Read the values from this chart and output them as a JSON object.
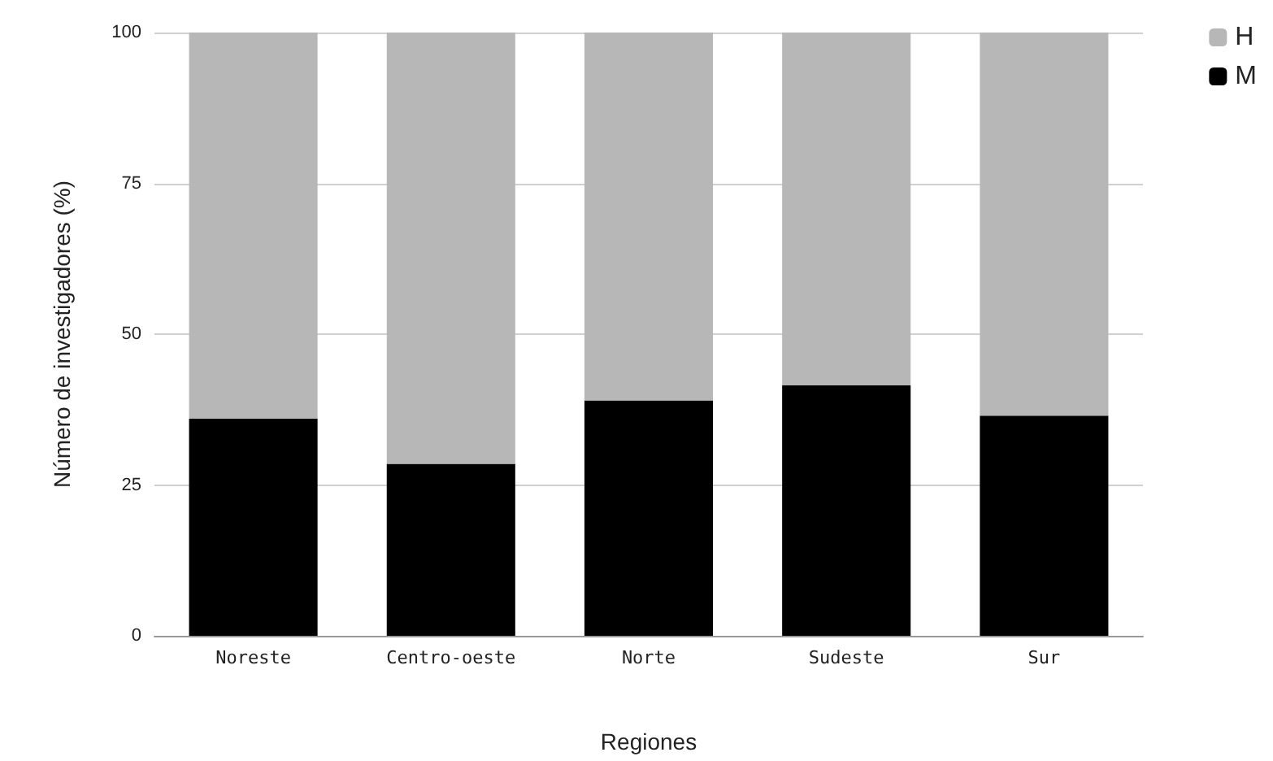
{
  "chart_data": {
    "type": "bar",
    "stacked": true,
    "xlabel": "Regiones",
    "ylabel": "Número de investigadores (%)",
    "categories": [
      "Noreste",
      "Centro-oeste",
      "Norte",
      "Sudeste",
      "Sur"
    ],
    "series": [
      {
        "name": "M",
        "color": "#000000",
        "values": [
          36,
          28.5,
          39,
          41.5,
          36.5
        ]
      },
      {
        "name": "H",
        "color": "#b7b7b7",
        "values": [
          64,
          71.5,
          61,
          58.5,
          63.5
        ]
      }
    ],
    "ylim": [
      0,
      100
    ],
    "yticks": [
      0,
      25,
      50,
      75,
      100
    ],
    "grid": "y",
    "legend": "top right"
  }
}
